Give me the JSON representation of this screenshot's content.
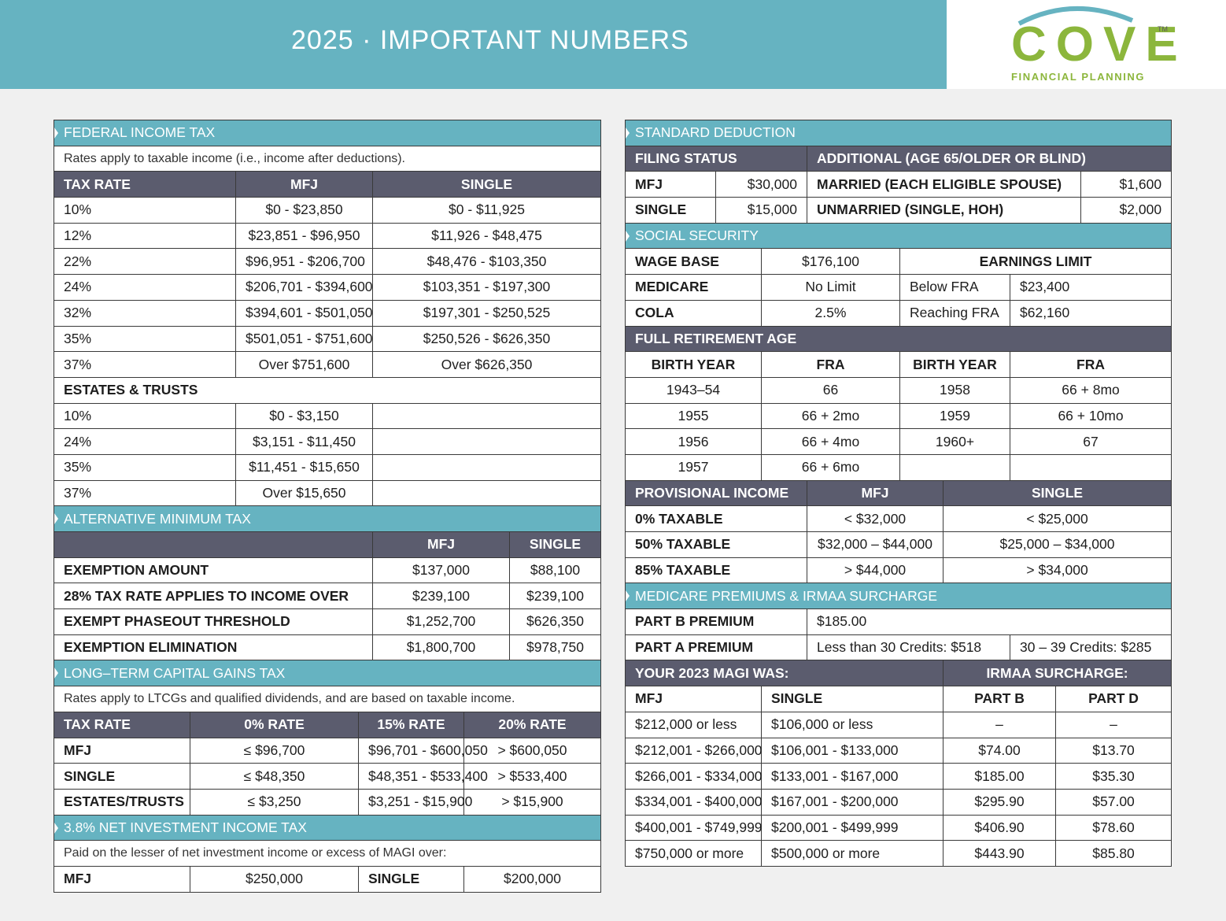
{
  "banner": {
    "title": "2025 · IMPORTANT NUMBERS"
  },
  "logo": {
    "word": "COVE",
    "tm": "TM",
    "subtitle": "FINANCIAL PLANNING"
  },
  "federal_income_tax": {
    "title": "FEDERAL INCOME TAX",
    "note": "Rates apply to taxable income (i.e., income after deductions).",
    "headers": [
      "TAX RATE",
      "MFJ",
      "SINGLE"
    ],
    "rows": [
      [
        "10%",
        "$0 - $23,850",
        "$0 - $11,925"
      ],
      [
        "12%",
        "$23,851 - $96,950",
        "$11,926 - $48,475"
      ],
      [
        "22%",
        "$96,951 - $206,700",
        "$48,476 - $103,350"
      ],
      [
        "24%",
        "$206,701 - $394,600",
        "$103,351 - $197,300"
      ],
      [
        "32%",
        "$394,601 - $501,050",
        "$197,301 - $250,525"
      ],
      [
        "35%",
        "$501,051 - $751,600",
        "$250,526 - $626,350"
      ],
      [
        "37%",
        "Over $751,600",
        "Over $626,350"
      ]
    ],
    "estates_title": "ESTATES & TRUSTS",
    "estates_rows": [
      [
        "10%",
        "$0 - $3,150"
      ],
      [
        "24%",
        "$3,151 - $11,450"
      ],
      [
        "35%",
        "$11,451 - $15,650"
      ],
      [
        "37%",
        "Over $15,650"
      ]
    ]
  },
  "amt": {
    "title": "ALTERNATIVE MINIMUM TAX",
    "headers": [
      "",
      "MFJ",
      "SINGLE"
    ],
    "rows": [
      [
        "EXEMPTION AMOUNT",
        "$137,000",
        "$88,100"
      ],
      [
        "28% TAX RATE APPLIES TO INCOME OVER",
        "$239,100",
        "$239,100"
      ],
      [
        "EXEMPT PHASEOUT THRESHOLD",
        "$1,252,700",
        "$626,350"
      ],
      [
        "EXEMPTION ELIMINATION",
        "$1,800,700",
        "$978,750"
      ]
    ]
  },
  "ltcg": {
    "title": "LONG–TERM CAPITAL GAINS TAX",
    "note": "Rates apply to LTCGs and qualified dividends, and are based on taxable income.",
    "headers": [
      "TAX RATE",
      "0% RATE",
      "15% RATE",
      "20% RATE"
    ],
    "rows": [
      [
        "MFJ",
        "≤ $96,700",
        "$96,701 - $600,050",
        "> $600,050"
      ],
      [
        "SINGLE",
        "≤ $48,350",
        "$48,351 - $533,400",
        "> $533,400"
      ],
      [
        "ESTATES/TRUSTS",
        "≤ $3,250",
        "$3,251 - $15,900",
        "> $15,900"
      ]
    ]
  },
  "niit": {
    "title": "3.8% NET INVESTMENT INCOME TAX",
    "note": "Paid on the lesser of net investment income or excess of MAGI over:",
    "row": [
      "MFJ",
      "$250,000",
      "SINGLE",
      "$200,000"
    ]
  },
  "standard_deduction": {
    "title": "STANDARD DEDUCTION",
    "headers": [
      "FILING STATUS",
      "ADDITIONAL (AGE 65/OLDER OR BLIND)"
    ],
    "rows": [
      [
        "MFJ",
        "$30,000",
        "MARRIED (EACH ELIGIBLE SPOUSE)",
        "$1,600"
      ],
      [
        "SINGLE",
        "$15,000",
        "UNMARRIED (SINGLE, HOH)",
        "$2,000"
      ]
    ]
  },
  "social_security": {
    "title": "SOCIAL SECURITY",
    "wage_base_label": "WAGE BASE",
    "wage_base_value": "$176,100",
    "earnings_limit_label": "EARNINGS LIMIT",
    "medicare_label": "MEDICARE",
    "medicare_value": "No Limit",
    "below_fra_label": "Below FRA",
    "below_fra_value": "$23,400",
    "cola_label": "COLA",
    "cola_value": "2.5%",
    "reaching_fra_label": "Reaching FRA",
    "reaching_fra_value": "$62,160"
  },
  "fra": {
    "title": "FULL RETIREMENT AGE",
    "headers": [
      "BIRTH YEAR",
      "FRA",
      "BIRTH YEAR",
      "FRA"
    ],
    "rows": [
      [
        "1943–54",
        "66",
        "1958",
        "66 + 8mo"
      ],
      [
        "1955",
        "66 + 2mo",
        "1959",
        "66 + 10mo"
      ],
      [
        "1956",
        "66 + 4mo",
        "1960+",
        "67"
      ],
      [
        "1957",
        "66 + 6mo",
        "",
        ""
      ]
    ]
  },
  "provisional_income": {
    "headers": [
      "PROVISIONAL INCOME",
      "MFJ",
      "SINGLE"
    ],
    "rows": [
      [
        "0% TAXABLE",
        "< $32,000",
        "< $25,000"
      ],
      [
        "50% TAXABLE",
        "$32,000 – $44,000",
        "$25,000 – $34,000"
      ],
      [
        "85% TAXABLE",
        "> $44,000",
        "> $34,000"
      ]
    ]
  },
  "medicare": {
    "title": "MEDICARE PREMIUMS & IRMAA SURCHARGE",
    "part_b_label": "PART B PREMIUM",
    "part_b_value": "$185.00",
    "part_a_label": "PART A PREMIUM",
    "part_a_value_1": "Less than 30 Credits: $518",
    "part_a_value_2": "30 – 39 Credits: $285",
    "magi_header": "YOUR 2023 MAGI WAS:",
    "irmaa_header": "IRMAA SURCHARGE:",
    "sub_headers": [
      "MFJ",
      "SINGLE",
      "PART B",
      "PART D"
    ],
    "rows": [
      [
        "$212,000 or less",
        "$106,000 or less",
        "–",
        "–"
      ],
      [
        "$212,001 - $266,000",
        "$106,001 - $133,000",
        "$74.00",
        "$13.70"
      ],
      [
        "$266,001 - $334,000",
        "$133,001 - $167,000",
        "$185.00",
        "$35.30"
      ],
      [
        "$334,001 - $400,000",
        "$167,001 - $200,000",
        "$295.90",
        "$57.00"
      ],
      [
        "$400,001 - $749,999",
        "$200,001 - $499,999",
        "$406.90",
        "$78.60"
      ],
      [
        "$750,000 or more",
        "$500,000 or more",
        "$443.90",
        "$85.80"
      ]
    ]
  },
  "colors": {
    "teal": "#66b3c1",
    "slate": "#5b5c6e",
    "logo_green": "#8cb63c",
    "logo_teal": "#66b3c1"
  }
}
